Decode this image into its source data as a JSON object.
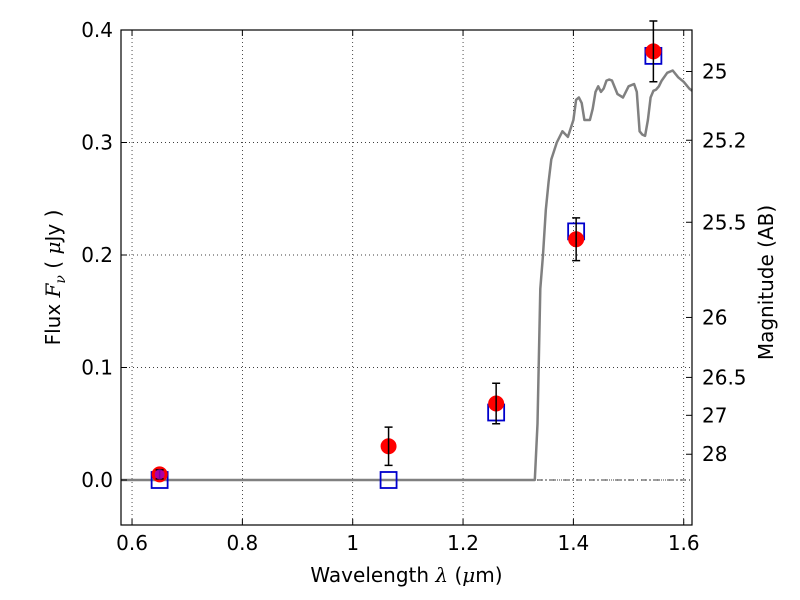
{
  "chart_data": {
    "type": "scatter",
    "xlabel": "Wavelength  λ (μm)",
    "ylabel": "Flux  Fν  ( μJy )",
    "right_ylabel": "Magnitude (AB)",
    "xlim": [
      0.58,
      1.615
    ],
    "ylim": [
      -0.04,
      0.4
    ],
    "x_ticks": [
      0.6,
      0.8,
      1.0,
      1.2,
      1.4,
      1.6
    ],
    "x_tick_labels": [
      "0.6",
      "0.8",
      "1",
      "1.2",
      "1.4",
      "1.6"
    ],
    "y_ticks": [
      0.0,
      0.1,
      0.2,
      0.3,
      0.4
    ],
    "y_tick_labels": [
      "0.0",
      "0.1",
      "0.2",
      "0.3",
      "0.4"
    ],
    "right_ticks": [
      {
        "label": "25",
        "flux": 0.3631
      },
      {
        "label": "25.2",
        "flux": 0.302
      },
      {
        "label": "25.5",
        "flux": 0.2291
      },
      {
        "label": "26",
        "flux": 0.1445
      },
      {
        "label": "26.5",
        "flux": 0.0912
      },
      {
        "label": "27",
        "flux": 0.0575
      },
      {
        "label": "28",
        "flux": 0.0229
      }
    ],
    "grid": true,
    "series": [
      {
        "kind": "marker-circle",
        "color": "#ff0000",
        "points": [
          {
            "x": 0.65,
            "y": 0.005,
            "err": 0.004
          },
          {
            "x": 1.065,
            "y": 0.03,
            "err": 0.017
          },
          {
            "x": 1.26,
            "y": 0.068,
            "err": 0.018
          },
          {
            "x": 1.405,
            "y": 0.214,
            "err": 0.019
          },
          {
            "x": 1.545,
            "y": 0.381,
            "err": 0.027
          }
        ]
      },
      {
        "kind": "marker-square",
        "color": "#0000cc",
        "points": [
          {
            "x": 0.65,
            "y": 0.0
          },
          {
            "x": 1.065,
            "y": 0.0
          },
          {
            "x": 1.26,
            "y": 0.06
          },
          {
            "x": 1.405,
            "y": 0.221
          },
          {
            "x": 1.545,
            "y": 0.377
          }
        ]
      },
      {
        "kind": "line",
        "color": "#808080",
        "x": [
          0.58,
          1.33,
          1.335,
          1.34,
          1.345,
          1.35,
          1.355,
          1.36,
          1.37,
          1.38,
          1.39,
          1.4,
          1.405,
          1.41,
          1.415,
          1.42,
          1.43,
          1.435,
          1.44,
          1.445,
          1.45,
          1.455,
          1.46,
          1.465,
          1.47,
          1.48,
          1.49,
          1.5,
          1.51,
          1.515,
          1.52,
          1.525,
          1.53,
          1.535,
          1.54,
          1.545,
          1.55,
          1.555,
          1.56,
          1.57,
          1.58,
          1.59,
          1.6,
          1.61,
          1.615
        ],
        "y": [
          0.0,
          0.0,
          0.05,
          0.17,
          0.2,
          0.24,
          0.265,
          0.285,
          0.3,
          0.31,
          0.305,
          0.32,
          0.338,
          0.34,
          0.335,
          0.32,
          0.32,
          0.33,
          0.345,
          0.35,
          0.345,
          0.348,
          0.355,
          0.356,
          0.355,
          0.343,
          0.34,
          0.35,
          0.352,
          0.345,
          0.31,
          0.307,
          0.306,
          0.32,
          0.34,
          0.346,
          0.347,
          0.35,
          0.355,
          0.362,
          0.364,
          0.358,
          0.354,
          0.348,
          0.346
        ]
      }
    ],
    "reference_line": {
      "y": 0.0,
      "style": "dash-dot",
      "color": "#000000"
    }
  }
}
